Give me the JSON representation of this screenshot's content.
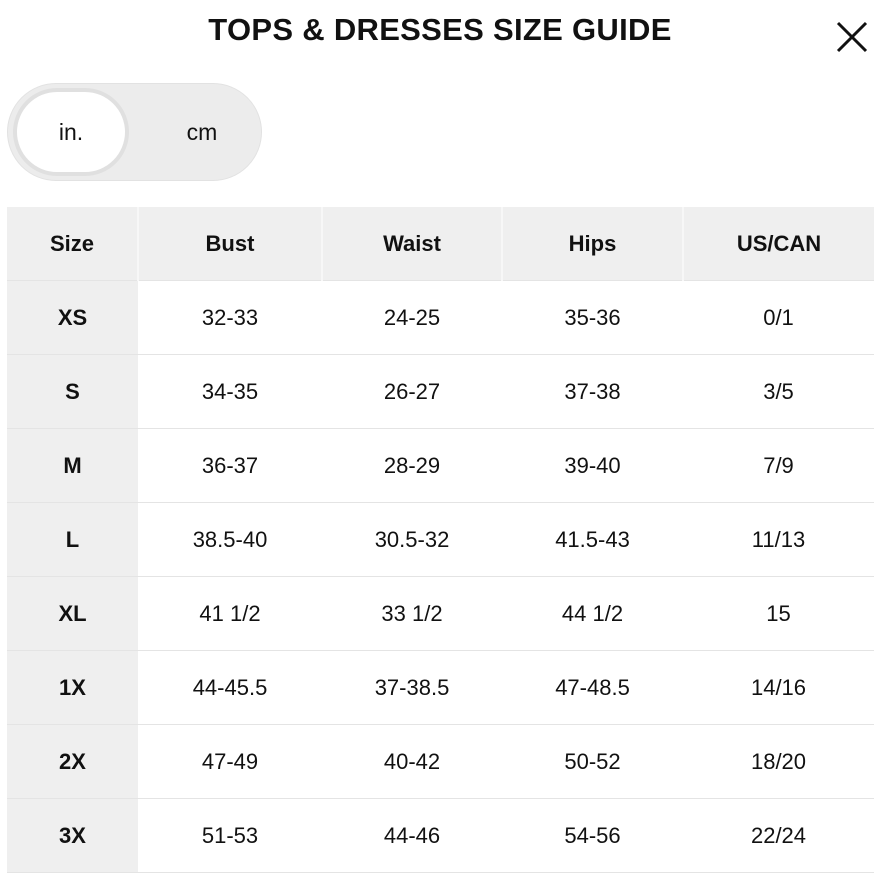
{
  "header": {
    "title": "TOPS & DRESSES SIZE GUIDE"
  },
  "toggle": {
    "options": [
      "in.",
      "cm"
    ]
  },
  "table": {
    "columns": [
      "Size",
      "Bust",
      "Waist",
      "Hips",
      "US/CAN"
    ],
    "rows": [
      [
        "XS",
        "32-33",
        "24-25",
        "35-36",
        "0/1"
      ],
      [
        "S",
        "34-35",
        "26-27",
        "37-38",
        "3/5"
      ],
      [
        "M",
        "36-37",
        "28-29",
        "39-40",
        "7/9"
      ],
      [
        "L",
        "38.5-40",
        "30.5-32",
        "41.5-43",
        "11/13"
      ],
      [
        "XL",
        "41 1/2",
        "33 1/2",
        "44 1/2",
        "15"
      ],
      [
        "1X",
        "44-45.5",
        "37-38.5",
        "47-48.5",
        "14/16"
      ],
      [
        "2X",
        "47-49",
        "40-42",
        "50-52",
        "18/20"
      ],
      [
        "3X",
        "51-53",
        "44-46",
        "54-56",
        "22/24"
      ]
    ]
  }
}
